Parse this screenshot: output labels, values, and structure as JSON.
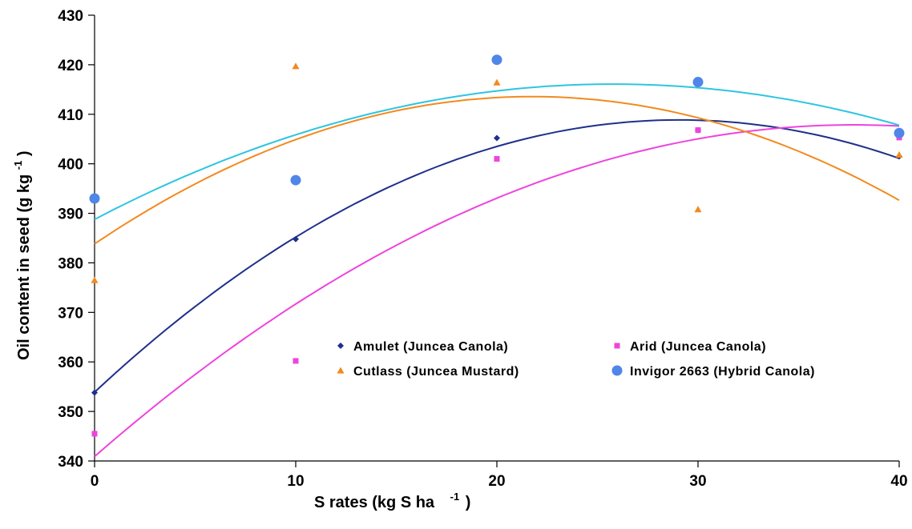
{
  "chart_data": {
    "type": "scatter",
    "title": "",
    "xlabel": "S rates (kg S ha",
    "xlabel_sup": "-1",
    "xlabel_close": ")",
    "ylabel": "Oil content in seed (g kg",
    "ylabel_sup": "-1",
    "ylabel_close": ")",
    "xlim": [
      0,
      40
    ],
    "ylim": [
      340,
      430
    ],
    "xticks": [
      0,
      10,
      20,
      30,
      40
    ],
    "yticks": [
      340,
      350,
      360,
      370,
      380,
      390,
      400,
      410,
      420,
      430
    ],
    "grid": false,
    "legend_position": "center-bottom",
    "series": [
      {
        "name": "Amulet (Juncea Canola)",
        "color": "#1f2f8c",
        "marker": "diamond",
        "x": [
          0,
          10,
          20,
          30,
          40
        ],
        "y": [
          353.8,
          384.8,
          405.2,
          406.8,
          401.5
        ],
        "trend": [
          354,
          385,
          403.5,
          409,
          401
        ]
      },
      {
        "name": "Arid (Juncea Canola)",
        "color": "#ee44dd",
        "marker": "square",
        "x": [
          0,
          10,
          20,
          30,
          40
        ],
        "y": [
          345.5,
          360.2,
          401,
          406.8,
          405.3
        ],
        "trend": [
          341,
          371.5,
          393,
          405.3,
          407.5
        ]
      },
      {
        "name": "Cutlass (Juncea Mustard)",
        "color": "#f28a1e",
        "marker": "triangle",
        "x": [
          0,
          10,
          20,
          30,
          40
        ],
        "y": [
          376.5,
          419.7,
          416.4,
          390.8,
          401.8
        ],
        "trend": [
          384,
          404.5,
          413.5,
          409.5,
          392.5
        ]
      },
      {
        "name": "Invigor 2663 (Hybrid Canola)",
        "color": "#4f86e8",
        "marker": "circle",
        "x": [
          0,
          10,
          20,
          30,
          40
        ],
        "y": [
          393,
          396.7,
          421,
          416.5,
          406.2
        ],
        "trend": [
          389,
          405.5,
          414.5,
          416,
          407.5
        ]
      }
    ],
    "trend_colors": [
      "#1f2f8c",
      "#ee44dd",
      "#f28a1e",
      "#2ec5e0"
    ]
  }
}
